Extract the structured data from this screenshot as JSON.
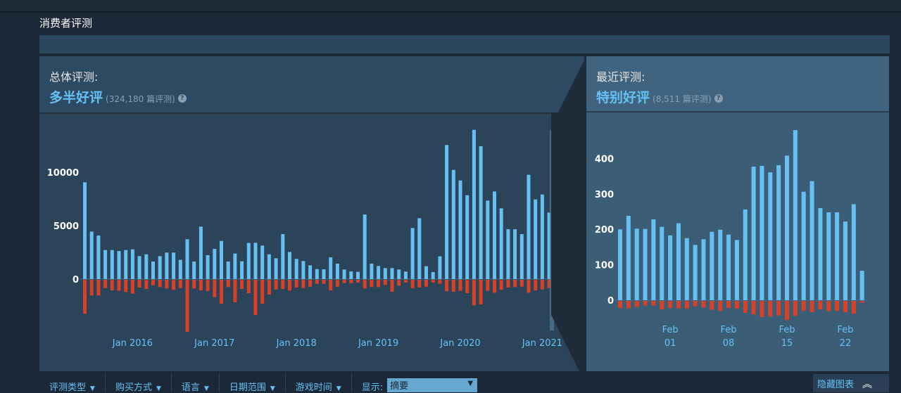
{
  "section_title": "消费者评测",
  "overall": {
    "label": "总体评测:",
    "score": "多半好评",
    "count": "(324,180 篇评测)",
    "help_icon": "question-circle-icon",
    "score_color": "#66c0f4"
  },
  "recent": {
    "label": "最近评测:",
    "score": "特别好评",
    "count": "(8,511 篇评测)",
    "help_icon": "question-circle-icon",
    "score_color": "#66c0f4"
  },
  "filters": [
    {
      "label": "评测类型"
    },
    {
      "label": "购买方式"
    },
    {
      "label": "语言"
    },
    {
      "label": "日期范围"
    },
    {
      "label": "游戏时间"
    }
  ],
  "display": {
    "label": "显示:",
    "value": "摘要"
  },
  "hide_graph": {
    "label": "隐藏图表",
    "icon": "double-chevron-up-icon"
  },
  "colors": {
    "positive": "#66c0f4",
    "negative": "#d94126"
  },
  "chart_data": [
    {
      "type": "bar",
      "title": "",
      "ylim": [
        -5000,
        14000
      ],
      "yticks": [
        "10000",
        "5000",
        "0"
      ],
      "ytick_values": [
        10000,
        5000,
        0
      ],
      "xticks": [
        {
          "label": "Jan 2016",
          "category": "2016-01"
        },
        {
          "label": "Jan 2017",
          "category": "2017-01"
        },
        {
          "label": "Jan 2018",
          "category": "2018-01"
        },
        {
          "label": "Jan 2019",
          "category": "2019-01"
        },
        {
          "label": "Jan 2020",
          "category": "2020-01"
        },
        {
          "label": "Jan 2021",
          "category": "2021-01"
        }
      ],
      "categories": [
        "2015-06",
        "2015-07",
        "2015-08",
        "2015-09",
        "2015-10",
        "2015-11",
        "2015-12",
        "2016-01",
        "2016-02",
        "2016-03",
        "2016-04",
        "2016-05",
        "2016-06",
        "2016-07",
        "2016-08",
        "2016-09",
        "2016-10",
        "2016-11",
        "2016-12",
        "2017-01",
        "2017-02",
        "2017-03",
        "2017-04",
        "2017-05",
        "2017-06",
        "2017-07",
        "2017-08",
        "2017-09",
        "2017-10",
        "2017-11",
        "2017-12",
        "2018-01",
        "2018-02",
        "2018-03",
        "2018-04",
        "2018-05",
        "2018-06",
        "2018-07",
        "2018-08",
        "2018-09",
        "2018-10",
        "2018-11",
        "2018-12",
        "2019-01",
        "2019-02",
        "2019-03",
        "2019-04",
        "2019-05",
        "2019-06",
        "2019-07",
        "2019-08",
        "2019-09",
        "2019-10",
        "2019-11",
        "2019-12",
        "2020-01",
        "2020-02",
        "2020-03",
        "2020-04",
        "2020-05",
        "2020-06",
        "2020-07",
        "2020-08",
        "2020-09",
        "2020-10",
        "2020-11",
        "2020-12",
        "2021-01",
        "2021-02"
      ],
      "series": [
        {
          "values": [
            9060,
            4450,
            4080,
            2720,
            2720,
            2630,
            2720,
            2790,
            2150,
            2320,
            1650,
            2150,
            2480,
            2480,
            1800,
            3730,
            1650,
            4910,
            2240,
            2830,
            3570,
            1650,
            2390,
            1670,
            3380,
            3400,
            3140,
            2320,
            1950,
            4210,
            2540,
            1890,
            1690,
            1290,
            940,
            920,
            2040,
            1450,
            900,
            720,
            680,
            6050,
            1450,
            1230,
            1030,
            1030,
            900,
            700,
            4780,
            5700,
            1210,
            660,
            2130,
            12550,
            10220,
            9230,
            7850,
            13970,
            12430,
            7350,
            8200,
            6620,
            4670,
            4670,
            4210,
            9760,
            7460,
            7920,
            6230
          ]
        },
        {
          "values": [
            -3180,
            -1470,
            -1470,
            -770,
            -990,
            -1030,
            -1140,
            -1290,
            -730,
            -860,
            -510,
            -680,
            -810,
            -940,
            -770,
            -4870,
            -810,
            -990,
            -1050,
            -1620,
            -2240,
            -680,
            -2100,
            -860,
            -1250,
            -3290,
            -2240,
            -1380,
            -900,
            -860,
            -1010,
            -720,
            -770,
            -640,
            -370,
            -370,
            -990,
            -640,
            -310,
            -310,
            -260,
            -810,
            -680,
            -680,
            -480,
            -1120,
            -550,
            -260,
            -770,
            -720,
            -640,
            -260,
            -370,
            -1070,
            -1120,
            -1030,
            -1250,
            -2390,
            -2300,
            -1030,
            -1210,
            -940,
            -720,
            -680,
            -640,
            -1210,
            -990,
            -900,
            -770
          ]
        }
      ]
    },
    {
      "type": "bar",
      "title": "",
      "ylim": [
        -60,
        490
      ],
      "yticks": [
        "400",
        "300",
        "200",
        "100",
        "0"
      ],
      "ytick_values": [
        400,
        300,
        200,
        100,
        0
      ],
      "xticks": [
        {
          "label": "Feb",
          "sub": "01",
          "category": "02-01"
        },
        {
          "label": "Feb",
          "sub": "08",
          "category": "02-08"
        },
        {
          "label": "Feb",
          "sub": "15",
          "category": "02-15"
        },
        {
          "label": "Feb",
          "sub": "22",
          "category": "02-22"
        }
      ],
      "categories": [
        "01-26",
        "01-27",
        "01-28",
        "01-29",
        "01-30",
        "01-31",
        "02-01",
        "02-02",
        "02-03",
        "02-04",
        "02-05",
        "02-06",
        "02-07",
        "02-08",
        "02-09",
        "02-10",
        "02-11",
        "02-12",
        "02-13",
        "02-14",
        "02-15",
        "02-16",
        "02-17",
        "02-18",
        "02-19",
        "02-20",
        "02-21",
        "02-22",
        "02-23",
        "02-24"
      ],
      "series": [
        {
          "values": [
            200,
            238,
            202,
            201,
            228,
            207,
            183,
            217,
            175,
            156,
            172,
            193,
            199,
            185,
            170,
            256,
            377,
            379,
            361,
            381,
            408,
            480,
            306,
            336,
            260,
            248,
            248,
            222,
            271,
            83
          ]
        },
        {
          "values": [
            -20,
            -21,
            -17,
            -13,
            -13,
            -24,
            -20,
            -21,
            -22,
            -15,
            -18,
            -25,
            -28,
            -20,
            -22,
            -34,
            -38,
            -46,
            -44,
            -41,
            -54,
            -42,
            -28,
            -32,
            -24,
            -29,
            -28,
            -32,
            -36,
            -5
          ]
        }
      ]
    }
  ]
}
